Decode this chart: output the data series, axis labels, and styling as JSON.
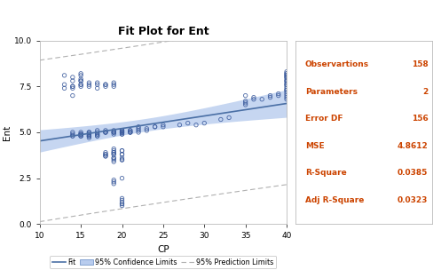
{
  "title": "Fit Plot for Ent",
  "xlabel": "CP",
  "ylabel": "Ent",
  "xlim": [
    10,
    40
  ],
  "ylim": [
    0.0,
    10.0
  ],
  "xticks": [
    10,
    15,
    20,
    25,
    30,
    35,
    40
  ],
  "yticks": [
    0.0,
    2.5,
    5.0,
    7.5,
    10.0
  ],
  "scatter_color": "#3a5a9c",
  "fit_color": "#4a6fa5",
  "ci_color": "#b8ccee",
  "pi_color": "#b0b0b0",
  "label_color": "#cc4400",
  "stats_items": [
    [
      "Observartions",
      "158"
    ],
    [
      "Parameters",
      "2"
    ],
    [
      "Error DF",
      "156"
    ],
    [
      "MSE",
      "4.8612"
    ],
    [
      "R-Square",
      "0.0385"
    ],
    [
      "Adj R-Square",
      "0.0323"
    ]
  ],
  "intercept": 3.85,
  "slope": 0.068,
  "n": 158,
  "mse": 4.8612,
  "cp_data": [
    13,
    13,
    13,
    14,
    14,
    14,
    14,
    14,
    14,
    14,
    14,
    14,
    14,
    15,
    15,
    15,
    15,
    15,
    15,
    15,
    15,
    15,
    15,
    15,
    15,
    15,
    15,
    15,
    16,
    16,
    16,
    16,
    16,
    16,
    16,
    16,
    16,
    16,
    16,
    17,
    17,
    17,
    17,
    17,
    17,
    17,
    17,
    17,
    18,
    18,
    18,
    18,
    18,
    18,
    18,
    18,
    18,
    18,
    18,
    18,
    19,
    19,
    19,
    19,
    19,
    19,
    19,
    19,
    19,
    19,
    19,
    19,
    19,
    19,
    19,
    19,
    19,
    19,
    19,
    19,
    19,
    20,
    20,
    20,
    20,
    20,
    20,
    20,
    20,
    20,
    20,
    20,
    20,
    20,
    20,
    20,
    20,
    20,
    20,
    20,
    20,
    20,
    20,
    20,
    21,
    21,
    21,
    21,
    21,
    22,
    22,
    22,
    22,
    23,
    23,
    24,
    24,
    25,
    25,
    27,
    28,
    29,
    30,
    32,
    33,
    35,
    35,
    35,
    35,
    36,
    36,
    37,
    38,
    38,
    39,
    39,
    40,
    40,
    40,
    40,
    40,
    40,
    40,
    40,
    40,
    40,
    40,
    40,
    40,
    40,
    40,
    40,
    40,
    40,
    40,
    40,
    40,
    40
  ],
  "ent_data": [
    7.6,
    7.4,
    8.1,
    5.0,
    4.8,
    4.9,
    4.8,
    7.0,
    7.5,
    7.5,
    7.4,
    7.8,
    8.0,
    4.9,
    4.8,
    4.9,
    4.8,
    4.9,
    5.0,
    4.8,
    7.5,
    7.6,
    7.8,
    7.6,
    7.8,
    7.9,
    8.1,
    8.2,
    4.7,
    4.8,
    4.9,
    4.8,
    5.0,
    5.0,
    4.9,
    4.8,
    7.5,
    7.7,
    7.6,
    4.8,
    4.8,
    4.9,
    4.9,
    5.0,
    5.1,
    7.6,
    7.4,
    7.7,
    3.7,
    3.8,
    3.8,
    3.7,
    3.9,
    5.0,
    5.0,
    5.1,
    5.0,
    7.6,
    7.5,
    7.6,
    2.3,
    2.2,
    2.4,
    3.4,
    3.5,
    3.6,
    3.6,
    3.8,
    3.8,
    3.9,
    3.9,
    4.0,
    4.1,
    4.9,
    5.0,
    5.0,
    5.1,
    5.0,
    7.5,
    7.6,
    7.7,
    1.0,
    1.1,
    1.1,
    1.2,
    1.3,
    1.4,
    2.5,
    3.5,
    3.5,
    3.6,
    3.8,
    3.8,
    4.0,
    4.0,
    4.9,
    5.0,
    5.0,
    5.1,
    5.1,
    4.9,
    5.0,
    5.0,
    5.1,
    5.0,
    5.1,
    5.0,
    5.0,
    5.1,
    5.0,
    5.1,
    5.2,
    5.3,
    5.1,
    5.2,
    5.3,
    5.3,
    5.4,
    5.3,
    5.4,
    5.5,
    5.4,
    5.5,
    5.7,
    5.8,
    6.5,
    6.6,
    6.7,
    7.0,
    6.8,
    6.9,
    6.8,
    6.9,
    7.0,
    7.0,
    7.1,
    6.8,
    6.9,
    7.0,
    7.1,
    7.2,
    7.3,
    7.3,
    7.4,
    7.5,
    7.6,
    7.6,
    7.7,
    7.8,
    7.8,
    7.9,
    8.0,
    8.0,
    8.1,
    8.1,
    8.2,
    8.2,
    8.3
  ]
}
